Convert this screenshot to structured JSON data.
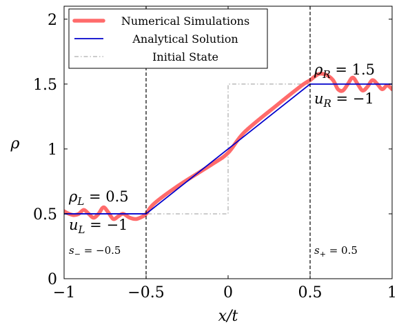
{
  "chart_data": {
    "type": "line",
    "xlabel": "x/t",
    "ylabel": "ρ",
    "xlim": [
      -1,
      1
    ],
    "ylim": [
      0,
      2.1
    ],
    "xticks": [
      -1,
      -0.5,
      0,
      0.5,
      1
    ],
    "xtick_labels": [
      "−1",
      "−0.5",
      "0",
      "0.5",
      "1"
    ],
    "yticks": [
      0,
      0.5,
      1,
      1.5,
      2
    ],
    "ytick_labels": [
      "0",
      "0.5",
      "1",
      "1.5",
      "2"
    ],
    "grid": false,
    "legend_position": "top-left",
    "series": [
      {
        "name": "Numerical Simulations",
        "color": "#ff6b6b",
        "style": "thick-solid",
        "x": [
          -1,
          -0.97,
          -0.94,
          -0.91,
          -0.88,
          -0.85,
          -0.82,
          -0.79,
          -0.76,
          -0.73,
          -0.7,
          -0.67,
          -0.64,
          -0.6,
          -0.56,
          -0.52,
          -0.5,
          -0.45,
          -0.3,
          -0.1,
          0,
          0.1,
          0.3,
          0.45,
          0.5,
          0.53,
          0.56,
          0.6,
          0.64,
          0.67,
          0.7,
          0.73,
          0.76,
          0.79,
          0.82,
          0.85,
          0.88,
          0.91,
          0.94,
          0.97,
          1
        ],
        "y": [
          0.52,
          0.5,
          0.49,
          0.5,
          0.53,
          0.5,
          0.47,
          0.5,
          0.55,
          0.51,
          0.46,
          0.48,
          0.5,
          0.47,
          0.46,
          0.48,
          0.5,
          0.58,
          0.72,
          0.88,
          0.97,
          1.13,
          1.34,
          1.49,
          1.53,
          1.56,
          1.58,
          1.57,
          1.53,
          1.46,
          1.45,
          1.5,
          1.55,
          1.5,
          1.45,
          1.48,
          1.53,
          1.5,
          1.46,
          1.49,
          1.46
        ]
      },
      {
        "name": "Analytical Solution",
        "color": "#0000cc",
        "style": "solid",
        "x": [
          -1,
          -0.5,
          0.5,
          1
        ],
        "y": [
          0.5,
          0.5,
          1.5,
          1.5
        ]
      },
      {
        "name": "Initial State",
        "color": "#999999",
        "style": "dash-dot",
        "x": [
          -1,
          0,
          0,
          1
        ],
        "y": [
          0.5,
          0.5,
          1.5,
          1.5
        ]
      }
    ],
    "vertical_lines": [
      {
        "x": -0.5,
        "style": "dashed",
        "color": "#000000"
      },
      {
        "x": 0.5,
        "style": "dashed",
        "color": "#000000"
      }
    ],
    "annotations": {
      "left_rho": "ρL = 0.5",
      "left_u": "uL = −1",
      "left_s": "s− = −0.5",
      "right_rho": "ρR = 1.5",
      "right_u": "uR = −1",
      "right_s": "s+ = 0.5"
    }
  }
}
